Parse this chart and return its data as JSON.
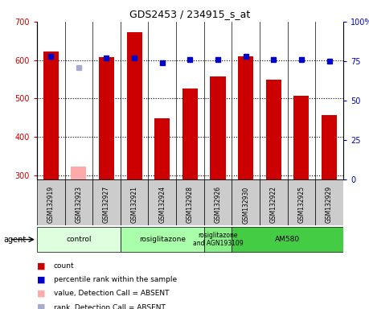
{
  "title": "GDS2453 / 234915_s_at",
  "samples": [
    "GSM132919",
    "GSM132923",
    "GSM132927",
    "GSM132921",
    "GSM132924",
    "GSM132928",
    "GSM132926",
    "GSM132930",
    "GSM132922",
    "GSM132925",
    "GSM132929"
  ],
  "counts": [
    623,
    null,
    607,
    672,
    449,
    526,
    558,
    610,
    550,
    507,
    456
  ],
  "absent_counts": [
    null,
    323,
    null,
    null,
    null,
    null,
    null,
    null,
    null,
    null,
    null
  ],
  "percentile_ranks": [
    78,
    null,
    77,
    77,
    74,
    76,
    76,
    78,
    76,
    76,
    75
  ],
  "absent_ranks": [
    null,
    71,
    null,
    null,
    null,
    null,
    null,
    null,
    null,
    null,
    null
  ],
  "ylim_left": [
    290,
    700
  ],
  "ylim_right": [
    0,
    100
  ],
  "yticks_left": [
    300,
    400,
    500,
    600,
    700
  ],
  "yticks_right": [
    0,
    25,
    50,
    75,
    100
  ],
  "bar_color": "#cc0000",
  "absent_bar_color": "#ffaaaa",
  "dot_color": "#0000cc",
  "absent_dot_color": "#aaaacc",
  "groups": [
    {
      "label": "control",
      "start": 0,
      "end": 3,
      "color": "#ddffdd"
    },
    {
      "label": "rosiglitazone",
      "start": 3,
      "end": 6,
      "color": "#aaffaa"
    },
    {
      "label": "rosiglitazone\nand AGN193109",
      "start": 6,
      "end": 7,
      "color": "#88ee88"
    },
    {
      "label": "AM580",
      "start": 7,
      "end": 11,
      "color": "#44cc44"
    }
  ],
  "agent_label": "agent",
  "sample_bg_color": "#cccccc",
  "bar_width": 0.55,
  "left_tick_color": "#cc0000",
  "right_tick_color": "#0000cc",
  "legend_items": [
    {
      "color": "#cc0000",
      "label": "count",
      "marker": "square"
    },
    {
      "color": "#0000cc",
      "label": "percentile rank within the sample",
      "marker": "square"
    },
    {
      "color": "#ffaaaa",
      "label": "value, Detection Call = ABSENT",
      "marker": "square"
    },
    {
      "color": "#aaaacc",
      "label": "rank, Detection Call = ABSENT",
      "marker": "square"
    }
  ]
}
